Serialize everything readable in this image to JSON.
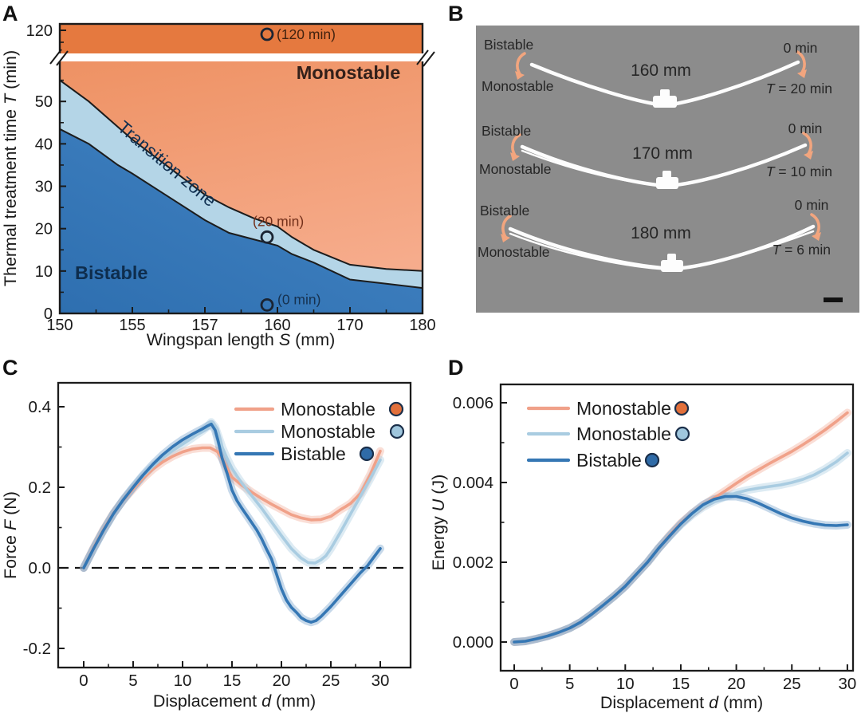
{
  "panels": {
    "a": "A",
    "b": "B",
    "c": "C",
    "d": "D"
  },
  "colors": {
    "phase_top_orange": "#E5793F",
    "phase_monostable_top": "#ED8E5E",
    "phase_monostable_bottom": "#F6AC8C",
    "phase_transition_fill": "#B4D5E7",
    "phase_bistable_dark": "#2E6FB0",
    "phase_bistable_light": "#4485C4",
    "boundary_stroke": "#1c1c1c",
    "photo_bg": "#8C8C8C",
    "arrow_orange": "#F2A57E",
    "wing_white": "#FDFDFD",
    "marker_outline": "#1B2F4A",
    "annotation_120": "#42220F",
    "annotation_20": "#73301B",
    "annotation_0": "#16314F",
    "monostable_label": "#33201A",
    "transition_label": "#0F2F50",
    "bistable_label": "#0E2D4D",
    "axis_text": "#1a1a1a"
  },
  "panelB": {
    "rows": [
      {
        "state_top": "Bistable",
        "state_bottom": "Monostable",
        "span": "160 mm",
        "time_zero": "0 min",
        "t_var": "T",
        "t_rest": " = 20 min"
      },
      {
        "state_top": "Bistable",
        "state_bottom": "Monostable",
        "span": "170 mm",
        "time_zero": "0 min",
        "t_var": "T",
        "t_rest": " = 10 min"
      },
      {
        "state_top": "Bistable",
        "state_bottom": "Monostable",
        "span": "180 mm",
        "time_zero": "0 min",
        "t_var": "T",
        "t_rest": " = 6 min"
      }
    ]
  },
  "chart_data": [
    {
      "type": "area",
      "panel": "A",
      "xlabel_pre": "Wingspan length ",
      "xlabel_var": "S",
      "xlabel_post": " (mm)",
      "ylabel_pre": "Thermal treatment time ",
      "ylabel_var": "T",
      "ylabel_post": " (min)",
      "x_ticks": [
        150,
        155,
        157,
        160,
        170,
        180
      ],
      "y_ticks": [
        0,
        10,
        20,
        30,
        40,
        50
      ],
      "y_break_tick": "120",
      "axis_break": true,
      "regions": {
        "monostable": "Monostable",
        "transition": "Transition zone",
        "bistable": "Bistable"
      },
      "boundary_upper": [
        [
          150,
          55
        ],
        [
          152,
          50
        ],
        [
          154,
          44
        ],
        [
          155,
          41
        ],
        [
          156,
          34.5
        ],
        [
          157,
          28
        ],
        [
          158,
          25
        ],
        [
          159,
          22.5
        ],
        [
          160,
          20.5
        ],
        [
          162,
          18
        ],
        [
          165,
          15
        ],
        [
          170,
          11.5
        ],
        [
          175,
          10.5
        ],
        [
          180,
          10
        ]
      ],
      "boundary_lower": [
        [
          150,
          43.5
        ],
        [
          152,
          40
        ],
        [
          154,
          35
        ],
        [
          155,
          33
        ],
        [
          156,
          27.5
        ],
        [
          157,
          22
        ],
        [
          158,
          19
        ],
        [
          159,
          17.5
        ],
        [
          160,
          16
        ],
        [
          162,
          14
        ],
        [
          165,
          12
        ],
        [
          170,
          8
        ],
        [
          175,
          7
        ],
        [
          180,
          6
        ]
      ],
      "points": [
        {
          "S": 160,
          "T": 120,
          "label": "(120 min)"
        },
        {
          "S": 160,
          "T": 18,
          "label": "(20 min)"
        },
        {
          "S": 160,
          "T": 2,
          "label": "(0 min)"
        }
      ]
    },
    {
      "type": "line",
      "panel": "C",
      "xlabel_pre": "Displacement ",
      "xlabel_var": "d",
      "xlabel_post": " (mm)",
      "ylabel_pre": "Force ",
      "ylabel_var": "F",
      "ylabel_post": " (N)",
      "x_ticks": [
        0,
        5,
        10,
        15,
        20,
        25,
        30
      ],
      "y_ticks": [
        -0.2,
        0.0,
        0.2,
        0.4
      ],
      "y_tick_labels": [
        "-0.2",
        "0.0",
        "0.2",
        "0.4"
      ],
      "xlim": [
        0,
        30
      ],
      "ylim": [
        -0.25,
        0.46
      ],
      "zero_line": true,
      "legend_position": "top-right",
      "series": [
        {
          "name": "Monostable",
          "color": "#F0A189",
          "band": "rgba(240,161,137,0.35)",
          "marker": "#E2703B",
          "x": [
            0,
            0.5,
            1,
            2,
            3,
            4,
            5,
            6,
            7,
            8,
            9,
            10,
            11,
            12,
            12.8,
            13.5,
            14,
            14.5,
            15,
            16,
            17,
            18,
            19,
            20,
            21,
            22,
            23,
            24,
            25,
            26,
            26.5,
            27,
            28,
            29,
            30
          ],
          "y": [
            0,
            0.025,
            0.05,
            0.095,
            0.135,
            0.168,
            0.196,
            0.222,
            0.245,
            0.263,
            0.277,
            0.288,
            0.295,
            0.298,
            0.298,
            0.289,
            0.272,
            0.248,
            0.225,
            0.205,
            0.188,
            0.172,
            0.158,
            0.145,
            0.132,
            0.124,
            0.119,
            0.12,
            0.128,
            0.145,
            0.152,
            0.16,
            0.185,
            0.232,
            0.29
          ]
        },
        {
          "name": "Monostable",
          "color": "#A9CCE1",
          "band": "rgba(169,204,225,0.4)",
          "marker": "#9FC6DD",
          "x": [
            0,
            1,
            2,
            3,
            4,
            5,
            6,
            7,
            8,
            9,
            10,
            11,
            12,
            12.5,
            12.9,
            13.3,
            13.7,
            14,
            14.5,
            15,
            15.5,
            16,
            17,
            18,
            19,
            20,
            21,
            22,
            22.7,
            23.4,
            24,
            24.5,
            25,
            26,
            27,
            28,
            29,
            30
          ],
          "y": [
            0,
            0.048,
            0.093,
            0.134,
            0.169,
            0.2,
            0.228,
            0.252,
            0.273,
            0.291,
            0.307,
            0.323,
            0.34,
            0.35,
            0.362,
            0.35,
            0.322,
            0.3,
            0.272,
            0.247,
            0.228,
            0.21,
            0.179,
            0.148,
            0.114,
            0.08,
            0.048,
            0.024,
            0.013,
            0.012,
            0.02,
            0.03,
            0.048,
            0.09,
            0.134,
            0.178,
            0.222,
            0.268
          ]
        },
        {
          "name": "Bistable",
          "color": "#3577B4",
          "band": "rgba(53,119,180,0.28)",
          "marker": "#2F6BA7",
          "x": [
            0,
            1,
            2,
            3,
            4,
            5,
            6,
            7,
            8,
            9,
            10,
            11,
            12,
            12.5,
            12.9,
            13.3,
            13.6,
            14,
            14.5,
            15,
            15.5,
            16,
            16.5,
            17,
            17.5,
            18,
            18.5,
            19,
            19.3,
            20,
            20.5,
            21,
            21.5,
            22,
            22.5,
            23,
            23.5,
            24,
            25,
            26,
            27,
            28,
            28.7,
            29,
            30
          ],
          "y": [
            0,
            0.048,
            0.093,
            0.134,
            0.169,
            0.2,
            0.23,
            0.257,
            0.281,
            0.301,
            0.318,
            0.332,
            0.345,
            0.352,
            0.357,
            0.342,
            0.315,
            0.272,
            0.235,
            0.193,
            0.167,
            0.148,
            0.13,
            0.112,
            0.094,
            0.072,
            0.046,
            0.022,
            0,
            -0.052,
            -0.08,
            -0.098,
            -0.11,
            -0.124,
            -0.131,
            -0.135,
            -0.131,
            -0.121,
            -0.096,
            -0.068,
            -0.04,
            -0.012,
            0.005,
            0.015,
            0.048
          ]
        }
      ]
    },
    {
      "type": "line",
      "panel": "D",
      "xlabel_pre": "Displacement ",
      "xlabel_var": "d",
      "xlabel_post": " (mm)",
      "ylabel_pre": "Energy ",
      "ylabel_var": "U",
      "ylabel_post": " (J)",
      "x_ticks": [
        0,
        5,
        10,
        15,
        20,
        25,
        30
      ],
      "y_ticks": [
        0.0,
        0.002,
        0.004,
        0.006
      ],
      "y_tick_labels": [
        "0.000",
        "0.002",
        "0.004",
        "0.006"
      ],
      "xlim": [
        0,
        30
      ],
      "ylim": [
        -0.0007,
        0.00646
      ],
      "zero_line": false,
      "legend_position": "top-left",
      "series": [
        {
          "name": "Monostable",
          "color": "#F0A189",
          "band": "rgba(240,161,137,0.35)",
          "marker": "#E2703B",
          "x": [
            0,
            1,
            2,
            3,
            4,
            5,
            6,
            7,
            8,
            9,
            10,
            11,
            12,
            13,
            14,
            15,
            16,
            17,
            18,
            19,
            20,
            21,
            22,
            23,
            24,
            25,
            26,
            27,
            28,
            29,
            30
          ],
          "y": [
            0,
            2e-05,
            8e-05,
            0.00015,
            0.00024,
            0.00035,
            0.0005,
            0.0007,
            0.00092,
            0.00115,
            0.0014,
            0.0017,
            0.002,
            0.00235,
            0.00268,
            0.00298,
            0.00322,
            0.00342,
            0.00361,
            0.00379,
            0.00398,
            0.00416,
            0.00432,
            0.00448,
            0.00463,
            0.00478,
            0.00495,
            0.00513,
            0.00532,
            0.00553,
            0.00575
          ]
        },
        {
          "name": "Monostable",
          "color": "#A9CCE1",
          "band": "rgba(169,204,225,0.4)",
          "marker": "#9FC6DD",
          "x": [
            0,
            1,
            2,
            3,
            4,
            5,
            6,
            7,
            8,
            9,
            10,
            11,
            12,
            13,
            14,
            15,
            16,
            17,
            18,
            19,
            20,
            21,
            22,
            23,
            24,
            25,
            26,
            27,
            28,
            29,
            30
          ],
          "y": [
            0,
            2e-05,
            8e-05,
            0.00015,
            0.00024,
            0.00035,
            0.0005,
            0.0007,
            0.00092,
            0.00115,
            0.0014,
            0.0017,
            0.002,
            0.00235,
            0.00266,
            0.00294,
            0.00318,
            0.00338,
            0.00353,
            0.00364,
            0.00374,
            0.00381,
            0.00386,
            0.0039,
            0.00394,
            0.004,
            0.00408,
            0.00419,
            0.00434,
            0.00452,
            0.00474
          ]
        },
        {
          "name": "Bistable",
          "color": "#3577B4",
          "band": "rgba(53,119,180,0.28)",
          "marker": "#2F6BA7",
          "x": [
            0,
            1,
            2,
            3,
            4,
            5,
            6,
            7,
            8,
            9,
            10,
            11,
            12,
            13,
            14,
            15,
            16,
            17,
            18,
            19,
            20,
            21,
            22,
            23,
            24,
            25,
            26,
            27,
            28,
            29,
            30
          ],
          "y": [
            0,
            2e-05,
            8e-05,
            0.00015,
            0.00024,
            0.00035,
            0.0005,
            0.0007,
            0.00092,
            0.00115,
            0.0014,
            0.0017,
            0.002,
            0.00235,
            0.00266,
            0.00296,
            0.00322,
            0.00344,
            0.00358,
            0.00365,
            0.00365,
            0.00359,
            0.00348,
            0.00335,
            0.00322,
            0.00311,
            0.00303,
            0.00297,
            0.00293,
            0.00292,
            0.00294
          ]
        }
      ]
    }
  ]
}
